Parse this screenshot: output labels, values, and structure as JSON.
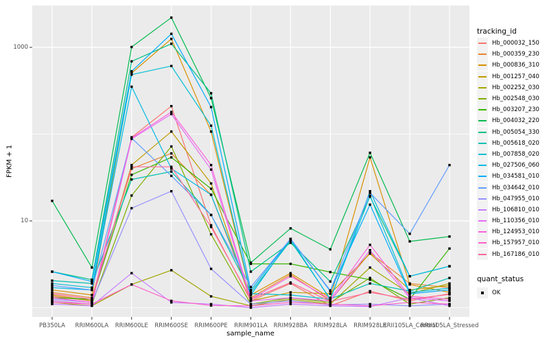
{
  "figure": {
    "x_axis": {
      "title": "sample_name"
    },
    "y_axis": {
      "title": "FPKM + 1"
    },
    "legend": {
      "tracking_title": "tracking_id",
      "quant_title": "quant_status",
      "ok_label": "OK"
    },
    "theme": {
      "panel_bg": "#EBEBEB",
      "grid_color": "#FFFFFF",
      "tick_color": "#333333",
      "tick_text_color": "#4D4D4D",
      "point_color": "#000000",
      "legend_key_bg": "#F2F2F2"
    }
  },
  "chart_data": {
    "type": "line",
    "title": "",
    "xlabel": "sample_name",
    "ylabel": "FPKM + 1",
    "y_scale": "log10",
    "ylim": [
      0.78,
      2900
    ],
    "legend_position": "right",
    "grid": true,
    "point_status": "OK",
    "y_ticks": [
      {
        "value": 10,
        "label": "10"
      },
      {
        "value": 1000,
        "label": "1000"
      }
    ],
    "grid_major": [
      10,
      1000
    ],
    "grid_minor": [
      1,
      100
    ],
    "categories": [
      "PB350LA",
      "RRIM600LA",
      "RRIM600LE",
      "RRIM600SE",
      "RRIM600PE",
      "RRIM901LA",
      "RRIM928BA",
      "RRIM928LA",
      "RRIM928LE",
      "RRII105LA_Control",
      "RRII105LA_Stressed"
    ],
    "series": [
      {
        "name": "Hb_000032_150",
        "color": "#F8766D",
        "values": [
          1.35,
          1.2,
          92,
          210,
          8.9,
          1.2,
          1.9,
          1.05,
          1.55,
          1.2,
          1.45
        ]
      },
      {
        "name": "Hb_000359_230",
        "color": "#EA8331",
        "values": [
          1.5,
          1.3,
          40,
          60,
          20,
          1.3,
          2.4,
          1.2,
          4.3,
          1.9,
          1.7
        ]
      },
      {
        "name": "Hb_000836_310",
        "color": "#D89000",
        "values": [
          1.6,
          1.4,
          505,
          1250,
          107,
          1.4,
          2.5,
          1.3,
          54,
          1.85,
          1.5
        ]
      },
      {
        "name": "Hb_001257_040",
        "color": "#C09B00",
        "values": [
          1.4,
          1.2,
          44,
          107,
          27,
          1.2,
          1.5,
          1.45,
          4.2,
          1.6,
          1.8
        ]
      },
      {
        "name": "Hb_002252_030",
        "color": "#A3A500",
        "values": [
          1.15,
          1.05,
          1.85,
          2.7,
          1.35,
          1.05,
          1.25,
          1.1,
          2.9,
          1.45,
          1.9
        ]
      },
      {
        "name": "Hb_002548_030",
        "color": "#7CAE00",
        "values": [
          1.2,
          1.1,
          19.6,
          72,
          7,
          1.1,
          1.3,
          1.15,
          2.2,
          1.1,
          1.3
        ]
      },
      {
        "name": "Hb_003207_230",
        "color": "#39B600",
        "values": [
          1.3,
          1.25,
          34,
          54,
          23.5,
          3.2,
          3.2,
          2.57,
          2.1,
          1.25,
          4.8
        ]
      },
      {
        "name": "Hb_004032_220",
        "color": "#00BB4E",
        "values": [
          17,
          2.9,
          1010,
          2200,
          260,
          3.3,
          8.2,
          4.7,
          61,
          5.8,
          6.6
        ]
      },
      {
        "name": "Hb_005054_330",
        "color": "#00C087",
        "values": [
          2.6,
          2.1,
          690,
          1100,
          296,
          2.6,
          5.6,
          2,
          19,
          2.3,
          3
        ]
      },
      {
        "name": "Hb_005618_020",
        "color": "#00C0B2",
        "values": [
          2.05,
          1.9,
          30,
          37,
          11.7,
          1.5,
          5.9,
          1.26,
          1.9,
          1.55,
          2.2
        ]
      },
      {
        "name": "Hb_007858_020",
        "color": "#00BFD4",
        "values": [
          1.9,
          1.7,
          485,
          610,
          125,
          1.45,
          1.4,
          1.25,
          19.5,
          1.5,
          1.68
        ]
      },
      {
        "name": "Hb_027506_060",
        "color": "#00BAE5",
        "values": [
          1.7,
          1.6,
          352,
          40,
          20,
          1.4,
          6.2,
          1.24,
          22,
          2.3,
          3
        ]
      },
      {
        "name": "Hb_034581_010",
        "color": "#00ACFC",
        "values": [
          2.6,
          2,
          530,
          1430,
          205,
          1.6,
          6.2,
          1.55,
          15.4,
          1.45,
          1.6
        ]
      },
      {
        "name": "Hb_034642_010",
        "color": "#619CFF",
        "values": [
          1.8,
          1.6,
          90,
          33,
          11.7,
          1.73,
          6.2,
          1.58,
          21,
          7.1,
          44
        ]
      },
      {
        "name": "Hb_047955_010",
        "color": "#9590FF",
        "values": [
          1.25,
          1.15,
          14,
          22,
          2.8,
          1.1,
          1.2,
          1.08,
          1.1,
          1.05,
          1.1
        ]
      },
      {
        "name": "Hb_106810_010",
        "color": "#C77CFF",
        "values": [
          1.1,
          1.05,
          2.5,
          1.15,
          1.1,
          1,
          1.1,
          1.05,
          1.03,
          1.3,
          1.05
        ]
      },
      {
        "name": "Hb_110356_010",
        "color": "#E76BF3",
        "values": [
          1.2,
          1.1,
          88,
          170,
          39,
          1.2,
          1.3,
          1.2,
          4.6,
          1.3,
          1.2
        ]
      },
      {
        "name": "Hb_124953_010",
        "color": "#FA62DB",
        "values": [
          1.3,
          1.15,
          90,
          180,
          44,
          1.25,
          2.3,
          1.25,
          5.3,
          1.35,
          1.25
        ]
      },
      {
        "name": "Hb_157957_010",
        "color": "#FF61C9",
        "values": [
          1.15,
          1.1,
          1.85,
          1.2,
          1.06,
          1.05,
          1.15,
          1.1,
          1.05,
          1.15,
          1.1
        ]
      },
      {
        "name": "Hb_167186_010",
        "color": "#FF6A98",
        "values": [
          1.45,
          1.25,
          42,
          42,
          8.5,
          1.25,
          1.95,
          1.18,
          1.5,
          1.25,
          1.42
        ]
      }
    ]
  }
}
